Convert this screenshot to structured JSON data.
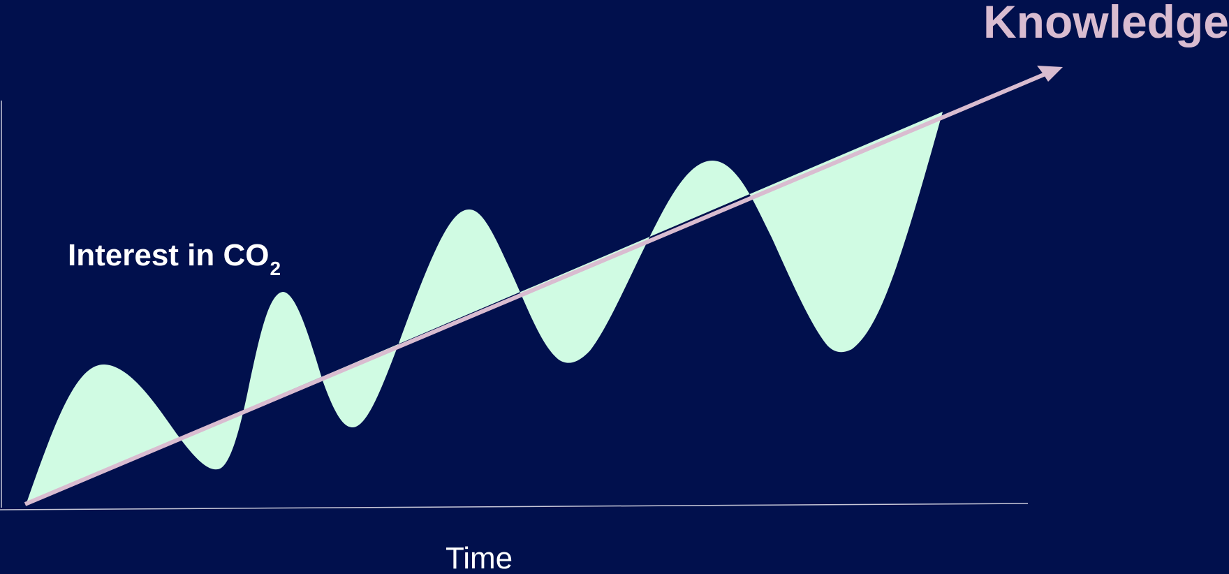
{
  "labels": {
    "knowledge": "Knowledge",
    "interest_main": "Interest in CO",
    "interest_subscript": "2",
    "time": "Time"
  },
  "colors": {
    "background": "#01104d",
    "wave_fill": "#d0fbe3",
    "arrow": "#d9bcd0",
    "axis": "#c8c8d8",
    "text": "#ffffff",
    "knowledge_text": "#d9bcd0"
  }
}
